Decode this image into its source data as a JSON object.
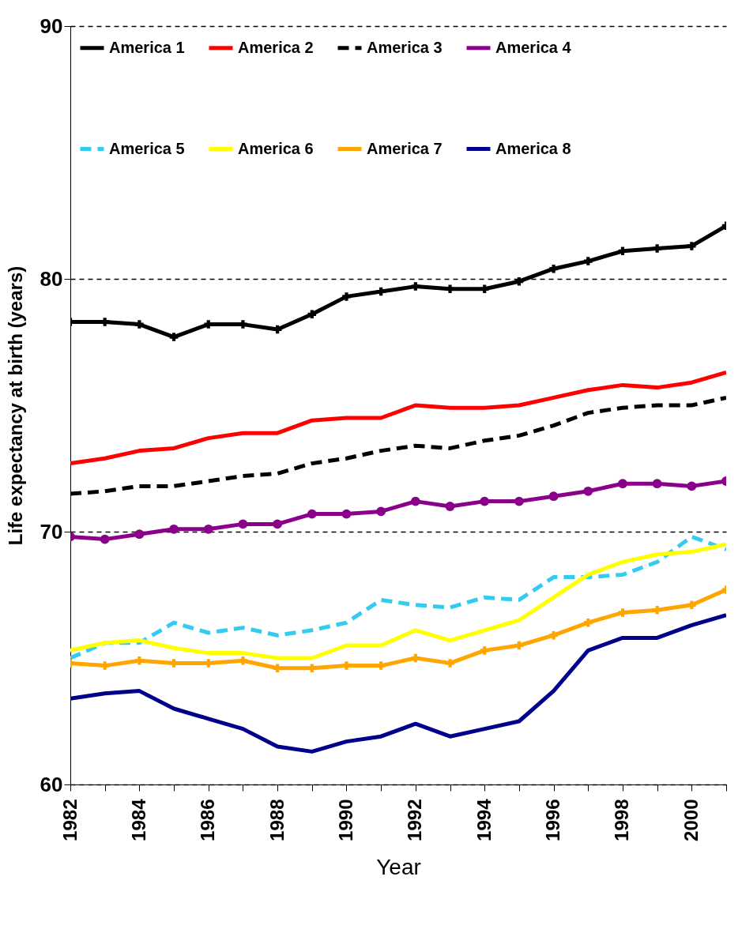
{
  "chart_data": {
    "type": "line",
    "xlabel": "Year",
    "ylabel": "Life expectancy at birth (years)",
    "x": [
      1982,
      1983,
      1984,
      1985,
      1986,
      1987,
      1988,
      1989,
      1990,
      1991,
      1992,
      1993,
      1994,
      1995,
      1996,
      1997,
      1998,
      1999,
      2000,
      2001
    ],
    "xlim": [
      1982,
      2001
    ],
    "xticks": [
      1982,
      {
        "value": 1983,
        "label": null
      },
      1984,
      {
        "value": 1985,
        "label": null
      },
      1986,
      {
        "value": 1987,
        "label": null
      },
      1988,
      {
        "value": 1989,
        "label": null
      },
      1990,
      {
        "value": 1991,
        "label": null
      },
      1992,
      {
        "value": 1993,
        "label": null
      },
      1994,
      {
        "value": 1995,
        "label": null
      },
      1996,
      {
        "value": 1997,
        "label": null
      },
      1998,
      {
        "value": 1999,
        "label": null
      },
      2000,
      {
        "value": 2001,
        "label": null
      }
    ],
    "ylim": [
      60,
      90
    ],
    "yticks": [
      60,
      70,
      80,
      90
    ],
    "grid": "y",
    "legend": "top left",
    "series": [
      {
        "name": "America 1",
        "color": "#000000",
        "line_style": "solid",
        "marker": "cross",
        "values": [
          78.3,
          78.3,
          78.2,
          77.7,
          78.2,
          78.2,
          78.0,
          78.6,
          79.3,
          79.5,
          79.7,
          79.6,
          79.6,
          79.9,
          80.4,
          80.7,
          81.1,
          81.2,
          81.3,
          82.1
        ]
      },
      {
        "name": "America 2",
        "color": "#ff0000",
        "line_style": "solid",
        "marker": "none",
        "values": [
          72.7,
          72.9,
          73.2,
          73.3,
          73.7,
          73.9,
          73.9,
          74.4,
          74.5,
          74.5,
          75.0,
          74.9,
          74.9,
          75.0,
          75.3,
          75.6,
          75.8,
          75.7,
          75.9,
          76.3
        ]
      },
      {
        "name": "America 3",
        "color": "#000000",
        "line_style": "dashed",
        "marker": "none",
        "values": [
          71.5,
          71.6,
          71.8,
          71.8,
          72.0,
          72.2,
          72.3,
          72.7,
          72.9,
          73.2,
          73.4,
          73.3,
          73.6,
          73.8,
          74.2,
          74.7,
          74.9,
          75.0,
          75.0,
          75.3
        ]
      },
      {
        "name": "America 4",
        "color": "#8b008b",
        "line_style": "solid",
        "marker": "circle",
        "values": [
          69.8,
          69.7,
          69.9,
          70.1,
          70.1,
          70.3,
          70.3,
          70.7,
          70.7,
          70.8,
          71.2,
          71.0,
          71.2,
          71.2,
          71.4,
          71.6,
          71.9,
          71.9,
          71.8,
          72.0
        ]
      },
      {
        "name": "America 5",
        "color": "#33ccee",
        "line_style": "dashed",
        "marker": "none",
        "values": [
          65.0,
          65.6,
          65.6,
          66.4,
          66.0,
          66.2,
          65.9,
          66.1,
          66.4,
          67.3,
          67.1,
          67.0,
          67.4,
          67.3,
          68.2,
          68.2,
          68.3,
          68.8,
          69.8,
          69.3
        ]
      },
      {
        "name": "America 6",
        "color": "#ffff00",
        "line_style": "solid",
        "marker": "none",
        "values": [
          65.3,
          65.6,
          65.7,
          65.4,
          65.2,
          65.2,
          65.0,
          65.0,
          65.5,
          65.5,
          66.1,
          65.7,
          66.1,
          66.5,
          67.4,
          68.3,
          68.8,
          69.1,
          69.2,
          69.5
        ]
      },
      {
        "name": "America 7",
        "color": "#ffa500",
        "line_style": "solid",
        "marker": "cross",
        "values": [
          64.8,
          64.7,
          64.9,
          64.8,
          64.8,
          64.9,
          64.6,
          64.6,
          64.7,
          64.7,
          65.0,
          64.8,
          65.3,
          65.5,
          65.9,
          66.4,
          66.8,
          66.9,
          67.1,
          67.7
        ]
      },
      {
        "name": "America 8",
        "color": "#00008b",
        "line_style": "solid",
        "marker": "none",
        "values": [
          63.4,
          63.6,
          63.7,
          63.0,
          62.6,
          62.2,
          61.5,
          61.3,
          61.7,
          61.9,
          62.4,
          61.9,
          62.2,
          62.5,
          63.7,
          65.3,
          65.8,
          65.8,
          66.3,
          66.7
        ]
      }
    ]
  }
}
